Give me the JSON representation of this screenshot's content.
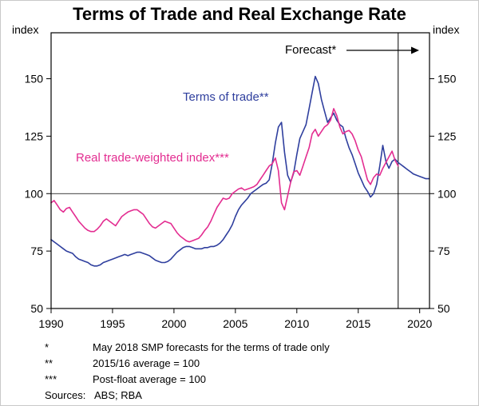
{
  "title": "Terms of Trade and Real Exchange Rate",
  "chart_data": {
    "type": "line",
    "title": "Terms of Trade and Real Exchange Rate",
    "ylabel_left": "index",
    "ylabel_right": "index",
    "ylim": [
      50,
      170
    ],
    "xlim": [
      1990,
      2020.8
    ],
    "yticks": [
      50,
      75,
      100,
      125,
      150
    ],
    "xticks": [
      1990,
      1995,
      2000,
      2005,
      2010,
      2015,
      2020
    ],
    "grid": "off",
    "refline": 100,
    "forecast_x": 2018.25,
    "forecast_label": "Forecast*",
    "series": [
      {
        "id": "terms-of-trade",
        "name": "Terms of trade**",
        "color": "#2f3f9e",
        "x_start": 1990,
        "x_step": 0.25,
        "values": [
          80,
          79,
          78,
          77,
          76,
          75,
          74.5,
          74,
          72.5,
          71.5,
          71,
          70.5,
          70,
          69,
          68.5,
          68.5,
          69,
          70,
          70.5,
          71,
          71.5,
          72,
          72.5,
          73,
          73.5,
          73,
          73.5,
          74,
          74.5,
          74.5,
          74,
          73.5,
          73,
          72,
          71,
          70.5,
          70,
          70,
          70.5,
          71.5,
          73,
          74.5,
          75.5,
          76.5,
          77,
          77,
          76.5,
          76,
          76,
          76,
          76.5,
          76.5,
          77,
          77,
          77.5,
          78.5,
          80,
          82,
          84,
          86.5,
          90,
          93,
          95,
          96.5,
          98,
          100,
          101,
          102,
          103,
          104,
          104.5,
          106,
          113,
          122,
          129,
          131,
          118,
          108,
          105,
          109,
          117,
          124,
          127,
          130,
          137,
          144,
          151,
          148,
          141,
          136,
          131,
          133,
          135,
          132,
          130,
          129,
          124,
          120,
          117,
          113,
          109,
          106,
          103,
          101,
          98.5,
          100,
          104,
          112,
          121,
          114,
          111,
          114,
          115,
          113.5,
          112.5,
          111.5,
          110.5,
          109.5,
          108.5,
          108,
          107.5,
          107,
          106.5,
          106.5
        ]
      },
      {
        "id": "real-twi",
        "name": "Real trade-weighted index***",
        "color": "#e32d91",
        "x_start": 1990,
        "x_step": 0.25,
        "values": [
          96,
          97,
          95,
          93,
          92,
          93.5,
          94,
          92,
          90,
          88,
          86.5,
          85,
          84,
          83.5,
          83.5,
          84.5,
          86,
          88,
          89,
          88,
          87,
          86,
          88,
          90,
          91,
          92,
          92.5,
          93,
          93,
          92,
          91,
          89,
          87,
          85.5,
          85,
          86,
          87,
          88,
          87.5,
          87,
          85,
          83,
          81.5,
          80.5,
          79.5,
          79,
          79.5,
          80,
          80.5,
          82,
          84,
          85.5,
          88,
          91,
          94,
          96,
          98,
          97.5,
          98,
          100,
          101,
          102,
          102.5,
          101.5,
          102,
          102.5,
          103,
          104,
          106,
          108,
          110,
          112,
          113,
          115.5,
          110,
          96,
          93,
          99,
          105,
          109.5,
          110,
          108,
          112,
          116,
          120,
          126,
          128,
          125,
          127,
          129,
          130,
          132,
          137,
          134,
          129,
          126,
          127,
          127.5,
          126,
          123,
          119,
          116,
          111,
          106,
          104,
          107,
          108.5,
          108,
          111,
          113.5,
          116,
          118.5,
          114.5,
          112
        ]
      }
    ]
  },
  "footnotes": [
    {
      "marker": "*",
      "text": "May 2018 SMP forecasts for the terms of trade only"
    },
    {
      "marker": "**",
      "text": "2015/16 average = 100"
    },
    {
      "marker": "***",
      "text": "Post-float average = 100"
    }
  ],
  "sources": {
    "label": "Sources:",
    "value": "ABS; RBA"
  }
}
